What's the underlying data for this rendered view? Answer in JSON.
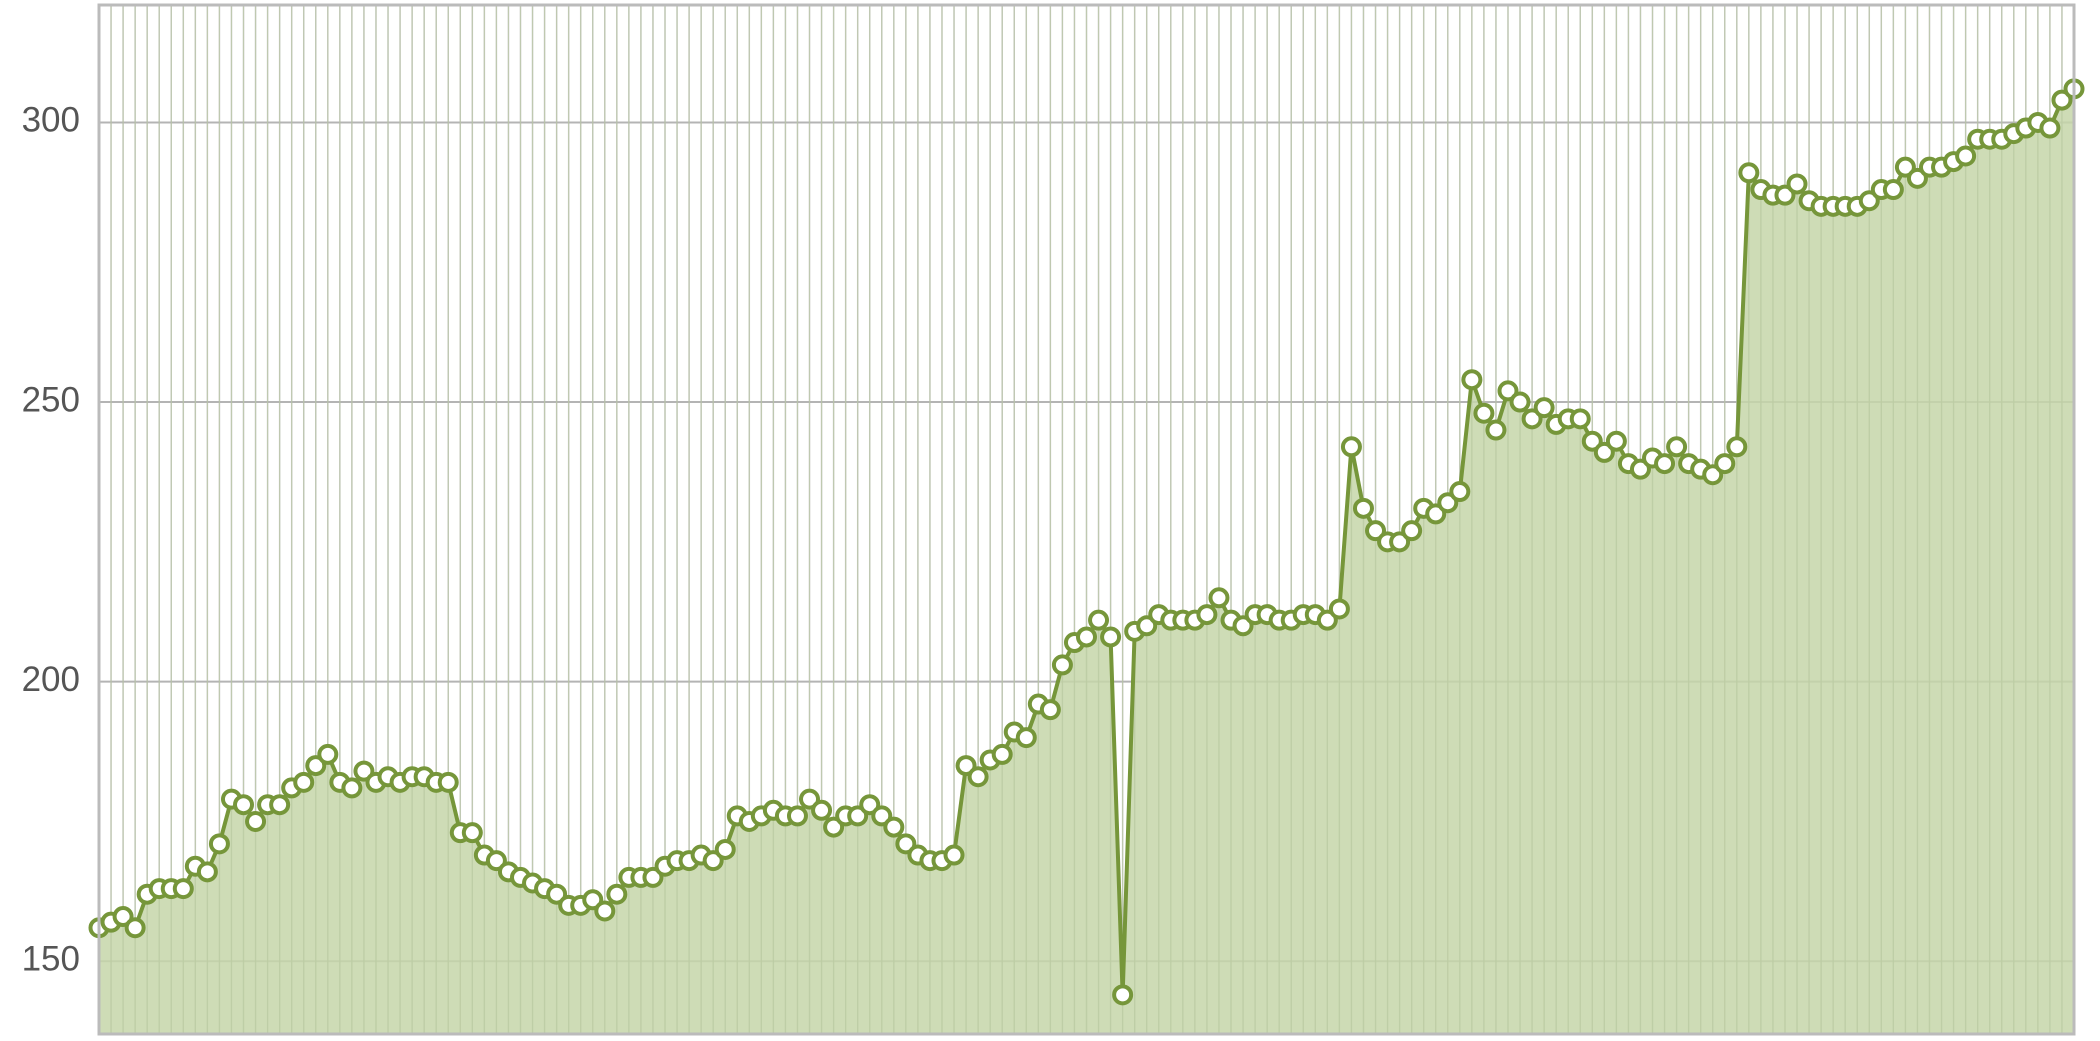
{
  "chart_data": {
    "type": "area",
    "categories": [
      null,
      null,
      null,
      null,
      null,
      null,
      null,
      null,
      null,
      null,
      null,
      null,
      null,
      null,
      null,
      null,
      null,
      null,
      null,
      null,
      null,
      null,
      null,
      null,
      null,
      null,
      null,
      null,
      null,
      null,
      null,
      null,
      null,
      null,
      null,
      null,
      null,
      null,
      null,
      null,
      null,
      null,
      null,
      null,
      null,
      null,
      null,
      null,
      null,
      null,
      null,
      null,
      null,
      null,
      null,
      null,
      null,
      null,
      null,
      null,
      null,
      null,
      null,
      null,
      null,
      null,
      null,
      null,
      null,
      null,
      null,
      null,
      null,
      null,
      null,
      null,
      null,
      null,
      null,
      null,
      null,
      null,
      null,
      null,
      null,
      null,
      null,
      null,
      null,
      null,
      null,
      null,
      null,
      null,
      null,
      null,
      null,
      null,
      null,
      null,
      null,
      null,
      null,
      null,
      null,
      null,
      null,
      null,
      null,
      null,
      null,
      null,
      null,
      null,
      null,
      null,
      null,
      null,
      null,
      null,
      null,
      null,
      null,
      null,
      null,
      null,
      null,
      null,
      null,
      null,
      null,
      null,
      null,
      null,
      null,
      null,
      null,
      null,
      null,
      null,
      null,
      null,
      null,
      null,
      null,
      null,
      null,
      null,
      null,
      null,
      null,
      null,
      null,
      null,
      null,
      null,
      null,
      null,
      null,
      null,
      null,
      null,
      null,
      null,
      null
    ],
    "values": [
      156,
      157,
      158,
      156,
      162,
      163,
      163,
      163,
      167,
      166,
      171,
      179,
      178,
      175,
      178,
      178,
      181,
      182,
      185,
      187,
      182,
      181,
      184,
      182,
      183,
      182,
      183,
      183,
      182,
      182,
      173,
      173,
      169,
      168,
      166,
      165,
      164,
      163,
      162,
      160,
      160,
      161,
      159,
      162,
      165,
      165,
      165,
      167,
      168,
      168,
      169,
      168,
      170,
      176,
      175,
      176,
      177,
      176,
      176,
      179,
      177,
      174,
      176,
      176,
      178,
      176,
      174,
      171,
      169,
      168,
      168,
      169,
      185,
      183,
      186,
      187,
      191,
      190,
      196,
      195,
      203,
      207,
      208,
      211,
      208,
      144,
      209,
      210,
      212,
      211,
      211,
      211,
      212,
      215,
      211,
      210,
      212,
      212,
      211,
      211,
      212,
      212,
      211,
      213,
      242,
      231,
      227,
      225,
      225,
      227,
      231,
      230,
      232,
      234,
      254,
      248,
      245,
      252,
      250,
      247,
      249,
      246,
      247,
      247,
      243,
      241,
      243,
      239,
      238,
      240,
      239,
      242,
      239,
      238,
      237,
      239,
      242,
      291,
      288,
      287,
      287,
      289,
      286,
      285,
      285,
      285,
      285,
      286,
      288,
      288,
      292,
      290,
      292,
      292,
      293,
      294,
      297,
      297,
      297,
      298,
      299,
      300,
      299,
      304,
      306
    ],
    "color": "#76963a",
    "fill_color": "#c6d6a9",
    "markers": true,
    "ylim": [
      137,
      321
    ],
    "yticks": [
      150,
      200,
      250,
      300
    ],
    "grid": true
  }
}
